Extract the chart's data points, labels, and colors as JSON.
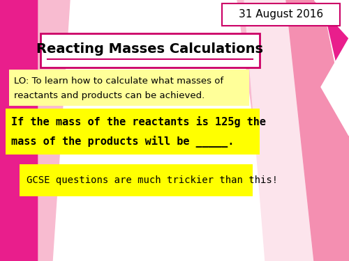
{
  "bg_color": "#ffffff",
  "date_text": "31 August 2016",
  "date_box_color": "#ffffff",
  "date_border_color": "#cc0066",
  "title_text": "Reacting Masses Calculations",
  "title_underline_color": "#cc0066",
  "title_box_border": "#cc0066",
  "lo_text_line1": "LO: To learn how to calculate what masses of",
  "lo_text_line2": "reactants and products can be achieved.",
  "lo_bg": "#ffff99",
  "main_text_line1": "If the mass of the reactants is 125g the",
  "main_text_line2": "mass of the products will be _____.",
  "main_bg": "#ffff00",
  "gcse_text": "GCSE questions are much trickier than this!",
  "gcse_bg": "#ffff00",
  "pink_bg": "#e91e8c",
  "light_pink": "#f48fb1",
  "decorative_pink1": "#e91e8c",
  "decorative_pink2": "#f06292",
  "decorative_pink3": "#fce4ec"
}
